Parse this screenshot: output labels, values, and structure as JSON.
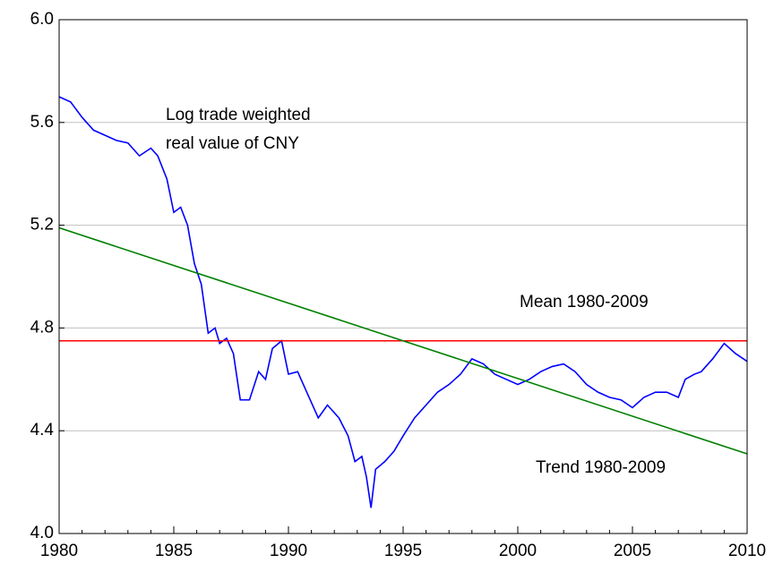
{
  "chart_data": {
    "type": "line",
    "x": [
      1980.0,
      1980.5,
      1981.0,
      1981.5,
      1982.0,
      1982.5,
      1983.0,
      1983.5,
      1984.0,
      1984.3,
      1984.7,
      1985.0,
      1985.3,
      1985.6,
      1985.9,
      1986.2,
      1986.5,
      1986.8,
      1987.0,
      1987.3,
      1987.6,
      1987.9,
      1988.3,
      1988.7,
      1989.0,
      1989.3,
      1989.7,
      1990.0,
      1990.4,
      1990.8,
      1991.3,
      1991.7,
      1992.2,
      1992.6,
      1992.9,
      1993.2,
      1993.4,
      1993.6,
      1993.8,
      1994.2,
      1994.6,
      1995.0,
      1995.5,
      1996.0,
      1996.5,
      1997.0,
      1997.5,
      1998.0,
      1998.5,
      1999.0,
      1999.5,
      2000.0,
      2000.5,
      2001.0,
      2001.5,
      2002.0,
      2002.5,
      2003.0,
      2003.5,
      2004.0,
      2004.5,
      2005.0,
      2005.5,
      2006.0,
      2006.5,
      2007.0,
      2007.3,
      2007.7,
      2008.0,
      2008.5,
      2009.0,
      2009.5,
      2010.0
    ],
    "series": [
      {
        "color": "#0000ff",
        "values": [
          5.7,
          5.68,
          5.62,
          5.57,
          5.55,
          5.53,
          5.52,
          5.47,
          5.5,
          5.47,
          5.38,
          5.25,
          5.27,
          5.2,
          5.05,
          4.97,
          4.78,
          4.8,
          4.74,
          4.76,
          4.7,
          4.52,
          4.52,
          4.63,
          4.6,
          4.72,
          4.75,
          4.62,
          4.63,
          4.55,
          4.45,
          4.5,
          4.45,
          4.38,
          4.28,
          4.3,
          4.22,
          4.1,
          4.25,
          4.28,
          4.32,
          4.38,
          4.45,
          4.5,
          4.55,
          4.58,
          4.62,
          4.68,
          4.66,
          4.62,
          4.6,
          4.58,
          4.6,
          4.63,
          4.65,
          4.66,
          4.63,
          4.58,
          4.55,
          4.53,
          4.52,
          4.49,
          4.53,
          4.55,
          4.55,
          4.53,
          4.6,
          4.62,
          4.63,
          4.68,
          4.74,
          4.7,
          4.67
        ]
      },
      {
        "color": "#ff0000",
        "x": [
          1980,
          2010
        ],
        "values": [
          4.75,
          4.75
        ]
      },
      {
        "color": "#008000",
        "x": [
          1980,
          2010
        ],
        "values": [
          5.19,
          4.31
        ]
      }
    ],
    "annotations": [
      {
        "lines": [
          "Log trade weighted",
          "real value of CNY"
        ],
        "color": "#0000ff"
      },
      {
        "lines": [
          "Mean 1980-2009"
        ],
        "color": "#ff0000"
      },
      {
        "lines": [
          "Trend 1980-2009"
        ],
        "color": "#008000"
      }
    ],
    "xlim": [
      1980,
      2010
    ],
    "xticks": [
      1980,
      1985,
      1990,
      1995,
      2000,
      2005,
      2010
    ],
    "ylim": [
      4.0,
      6.0
    ],
    "yticks": [
      {
        "value": 4.0,
        "label": "4.0"
      },
      4.4,
      4.8,
      5.2,
      5.6,
      {
        "value": 6.0,
        "label": "6.0"
      }
    ],
    "grid": true
  }
}
